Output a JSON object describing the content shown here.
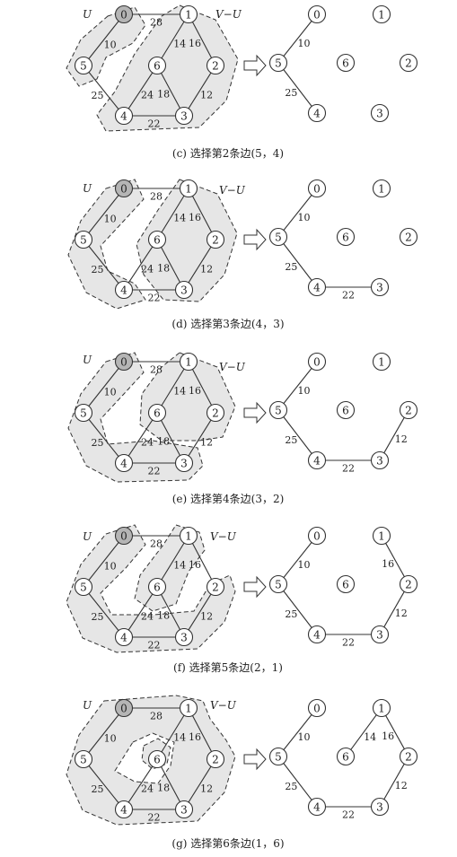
{
  "set_labels": {
    "u": "U",
    "v_minus_u": "V−U"
  },
  "nodes": [
    "0",
    "1",
    "2",
    "3",
    "4",
    "5",
    "6"
  ],
  "graph_edges": [
    {
      "a": 0,
      "b": 1,
      "w": "28"
    },
    {
      "a": 0,
      "b": 5,
      "w": "10"
    },
    {
      "a": 1,
      "b": 6,
      "w": "14"
    },
    {
      "a": 1,
      "b": 2,
      "w": "16"
    },
    {
      "a": 5,
      "b": 4,
      "w": "25"
    },
    {
      "a": 6,
      "b": 4,
      "w": "24"
    },
    {
      "a": 6,
      "b": 3,
      "w": "18"
    },
    {
      "a": 2,
      "b": 3,
      "w": "12"
    },
    {
      "a": 4,
      "b": 3,
      "w": "22"
    }
  ],
  "steps": [
    {
      "caption": "(c) 选择第2条边(5，4)",
      "mst_edges": [
        [
          0,
          5
        ],
        [
          5,
          4
        ]
      ]
    },
    {
      "caption": "(d) 选择第3条边(4，3)",
      "mst_edges": [
        [
          0,
          5
        ],
        [
          5,
          4
        ],
        [
          4,
          3
        ]
      ]
    },
    {
      "caption": "(e) 选择第4条边(3，2)",
      "mst_edges": [
        [
          0,
          5
        ],
        [
          5,
          4
        ],
        [
          4,
          3
        ],
        [
          3,
          2
        ]
      ]
    },
    {
      "caption": "(f) 选择第5条边(2，1)",
      "mst_edges": [
        [
          0,
          5
        ],
        [
          5,
          4
        ],
        [
          4,
          3
        ],
        [
          3,
          2
        ],
        [
          2,
          1
        ]
      ]
    },
    {
      "caption": "(g) 选择第6条边(1，6)",
      "mst_edges": [
        [
          0,
          5
        ],
        [
          5,
          4
        ],
        [
          4,
          3
        ],
        [
          3,
          2
        ],
        [
          2,
          1
        ],
        [
          1,
          6
        ]
      ]
    }
  ]
}
